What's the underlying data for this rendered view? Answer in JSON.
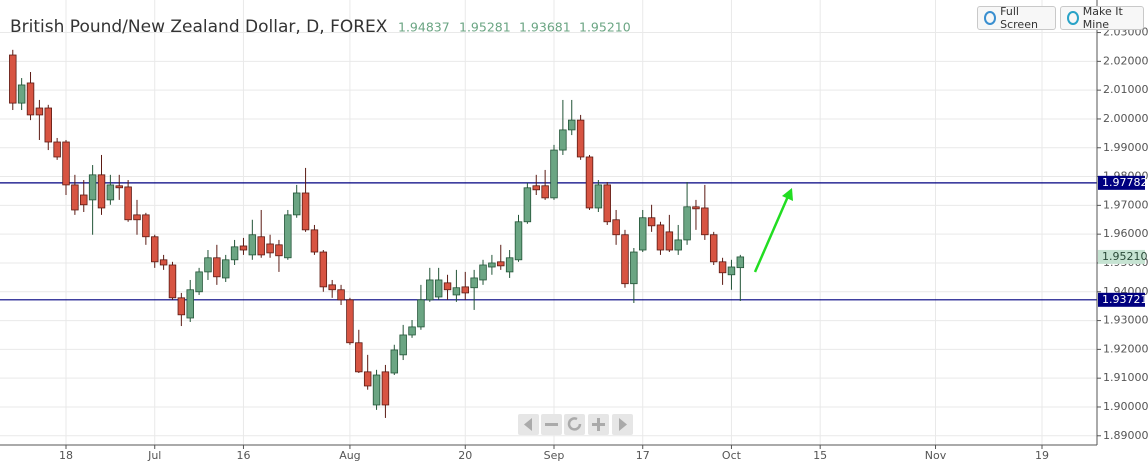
{
  "chart_data": {
    "type": "candlestick",
    "title": "British Pound/New Zealand Dollar, D, FOREX",
    "quote_labels": [
      "1.94837",
      "1.95281",
      "1.93681",
      "1.95210"
    ],
    "buttons": [
      "Full Screen",
      "Make It Mine"
    ],
    "up_color": "#6ba583",
    "down_color": "#d75442",
    "x": [
      0,
      1,
      2,
      3,
      4,
      5,
      6,
      7,
      8,
      9,
      10,
      11,
      12,
      13,
      14,
      15,
      16,
      17,
      18,
      19,
      20,
      21,
      22,
      23,
      24,
      25,
      26,
      27,
      28,
      29,
      30,
      31,
      32,
      33,
      34,
      35,
      36,
      37,
      38,
      39,
      40,
      41,
      42,
      43,
      44,
      45,
      46,
      47,
      48,
      49,
      50,
      51,
      52,
      53,
      54,
      55,
      56,
      57,
      58,
      59,
      60,
      61,
      62,
      63,
      64,
      65,
      66,
      67,
      68,
      69,
      70,
      71,
      72,
      73,
      74,
      75,
      76,
      77,
      78,
      79,
      80,
      81,
      82
    ],
    "open": [
      2.0222,
      2.0055,
      2.0125,
      2.0038,
      2.0038,
      1.992,
      1.992,
      1.9771,
      1.9736,
      1.9719,
      1.9806,
      1.9719,
      1.9768,
      1.9764,
      1.9667,
      1.9667,
      1.9591,
      1.9511,
      1.9493,
      1.9379,
      1.9309,
      1.94,
      1.9469,
      1.9518,
      1.9448,
      1.9511,
      1.9559,
      1.9528,
      1.9591,
      1.9566,
      1.9563,
      1.9518,
      1.9667,
      1.9743,
      1.9615,
      1.9538,
      1.9424,
      1.9407,
      1.9372,
      1.9223,
      1.9122,
      1.9007,
      1.9122,
      1.9118,
      1.9181,
      1.925,
      1.9278,
      1.9372,
      1.9382,
      1.9431,
      1.9389,
      1.9417,
      1.9414,
      1.9441,
      1.9486,
      1.9504,
      1.9469,
      1.9511,
      1.9643,
      1.9768,
      1.9768,
      1.9726,
      1.9892,
      1.9962,
      1.9996,
      1.9868,
      1.9691,
      1.9771,
      1.965,
      1.9598,
      1.9428,
      1.9545,
      1.9657,
      1.9632,
      1.9608,
      1.9545,
      1.958,
      1.9695,
      1.9691,
      1.9598,
      1.9504,
      1.9459,
      1.94837
    ],
    "high": [
      2.024,
      2.0142,
      2.0163,
      2.0066,
      2.0049,
      1.9934,
      1.9927,
      1.9806,
      1.9788,
      1.984,
      1.9875,
      1.9806,
      1.9806,
      1.9788,
      1.9719,
      1.9674,
      1.9598,
      1.9528,
      1.9504,
      1.9396,
      1.9441,
      1.9483,
      1.9545,
      1.9563,
      1.9528,
      1.958,
      1.9587,
      1.965,
      1.9684,
      1.9598,
      1.958,
      1.9684,
      1.9771,
      1.983,
      1.9632,
      1.9545,
      1.9441,
      1.9424,
      1.9379,
      1.9268,
      1.9181,
      1.9129,
      1.9146,
      1.9216,
      1.9285,
      1.9302,
      1.9424,
      1.9483,
      1.9483,
      1.9459,
      1.9476,
      1.9469,
      1.9476,
      1.9511,
      1.9528,
      1.9563,
      1.9545,
      1.9667,
      1.9778,
      1.9806,
      1.9823,
      1.991,
      2.0066,
      2.0066,
      2.0014,
      1.9875,
      1.9788,
      1.9781,
      1.9684,
      1.9615,
      1.9552,
      1.9684,
      1.9702,
      1.9643,
      1.9667,
      1.9632,
      1.9781,
      1.9719,
      1.9771,
      1.9608,
      1.9518,
      1.9511,
      1.95281
    ],
    "low": [
      2.0031,
      2.0031,
      1.9996,
      1.9927,
      1.9892,
      1.9858,
      1.9736,
      1.9667,
      1.9677,
      1.9598,
      1.9667,
      1.9702,
      1.9719,
      1.9643,
      1.9598,
      1.9563,
      1.9483,
      1.9476,
      1.9372,
      1.9281,
      1.9295,
      1.9389,
      1.9441,
      1.9424,
      1.9434,
      1.9493,
      1.9528,
      1.9511,
      1.9518,
      1.9518,
      1.9469,
      1.9511,
      1.9657,
      1.9608,
      1.9528,
      1.94,
      1.9379,
      1.9354,
      1.9216,
      1.9118,
      1.906,
      1.899,
      1.8962,
      1.9111,
      1.9163,
      1.924,
      1.9268,
      1.9365,
      1.9372,
      1.9372,
      1.9365,
      1.9372,
      1.9337,
      1.9424,
      1.9459,
      1.9476,
      1.9448,
      1.9504,
      1.9636,
      1.9736,
      1.9719,
      1.9719,
      1.9875,
      1.9944,
      1.9858,
      1.9684,
      1.9677,
      1.9632,
      1.9563,
      1.9414,
      1.9361,
      1.9538,
      1.9608,
      1.9528,
      1.9538,
      1.9528,
      1.9563,
      1.9615,
      1.958,
      1.9493,
      1.9424,
      1.9407,
      1.93681
    ],
    "close": [
      2.0055,
      2.0118,
      2.0014,
      2.0014,
      1.992,
      1.9868,
      1.9771,
      1.9684,
      1.9702,
      1.9806,
      1.9691,
      1.9771,
      1.9761,
      1.965,
      1.965,
      1.9591,
      1.9504,
      1.9493,
      1.9379,
      1.932,
      1.9407,
      1.9469,
      1.9518,
      1.9452,
      1.9511,
      1.9556,
      1.9545,
      1.9598,
      1.9528,
      1.9535,
      1.9525,
      1.9667,
      1.9743,
      1.9615,
      1.9538,
      1.9417,
      1.9407,
      1.9372,
      1.9223,
      1.9122,
      1.9073,
      1.9111,
      1.9007,
      1.9198,
      1.925,
      1.9278,
      1.9372,
      1.9441,
      1.9441,
      1.9407,
      1.9414,
      1.9396,
      1.9448,
      1.9493,
      1.95,
      1.949,
      1.9518,
      1.9643,
      1.9761,
      1.9754,
      1.9726,
      1.9892,
      1.9962,
      1.9996,
      1.9868,
      1.9691,
      1.9771,
      1.9643,
      1.9598,
      1.9428,
      1.9538,
      1.9657,
      1.9629,
      1.9545,
      1.9545,
      1.958,
      1.9695,
      1.9688,
      1.9598,
      1.9504,
      1.9466,
      1.9486,
      1.9521
    ],
    "xlim": [
      -1.44,
      122.2
    ],
    "xticks": [
      {
        "value": 6,
        "label": "18"
      },
      {
        "value": 16,
        "label": "Jul"
      },
      {
        "value": 26,
        "label": "16"
      },
      {
        "value": 38,
        "label": "Aug"
      },
      {
        "value": 51,
        "label": "20"
      },
      {
        "value": 61,
        "label": "Sep"
      },
      {
        "value": 71,
        "label": "17"
      },
      {
        "value": 81,
        "label": "Oct"
      },
      {
        "value": 91,
        "label": "15"
      },
      {
        "value": 104,
        "label": "Nov"
      },
      {
        "value": 116,
        "label": "19"
      }
    ],
    "ylim": [
      1.8868,
      2.0413
    ],
    "yticks": [
      {
        "value": 1.89,
        "label": "1.89000"
      },
      {
        "value": 1.9,
        "label": "1.90000"
      },
      {
        "value": 1.91,
        "label": "1.91000"
      },
      {
        "value": 1.92,
        "label": "1.92000"
      },
      {
        "value": 1.93,
        "label": "1.93000"
      },
      {
        "value": 1.94,
        "label": "1.94000"
      },
      {
        "value": 1.95,
        "label": "1.95000"
      },
      {
        "value": 1.96,
        "label": "1.96000"
      },
      {
        "value": 1.97,
        "label": "1.97000"
      },
      {
        "value": 1.98,
        "label": "1.98000"
      },
      {
        "value": 1.99,
        "label": "1.99000"
      },
      {
        "value": 2.0,
        "label": "2.00000"
      },
      {
        "value": 2.01,
        "label": "2.01000"
      },
      {
        "value": 2.02,
        "label": "2.02000"
      },
      {
        "value": 2.03,
        "label": "2.03000"
      }
    ],
    "grid": true,
    "hlines": [
      {
        "value": 1.97782,
        "label": "1.97782",
        "color": "#000080"
      },
      {
        "value": 1.93721,
        "label": "1.93721",
        "color": "#000080"
      }
    ],
    "last_price": {
      "value": 1.9521,
      "label": "1.95210",
      "color": "#c6e3d2"
    }
  }
}
